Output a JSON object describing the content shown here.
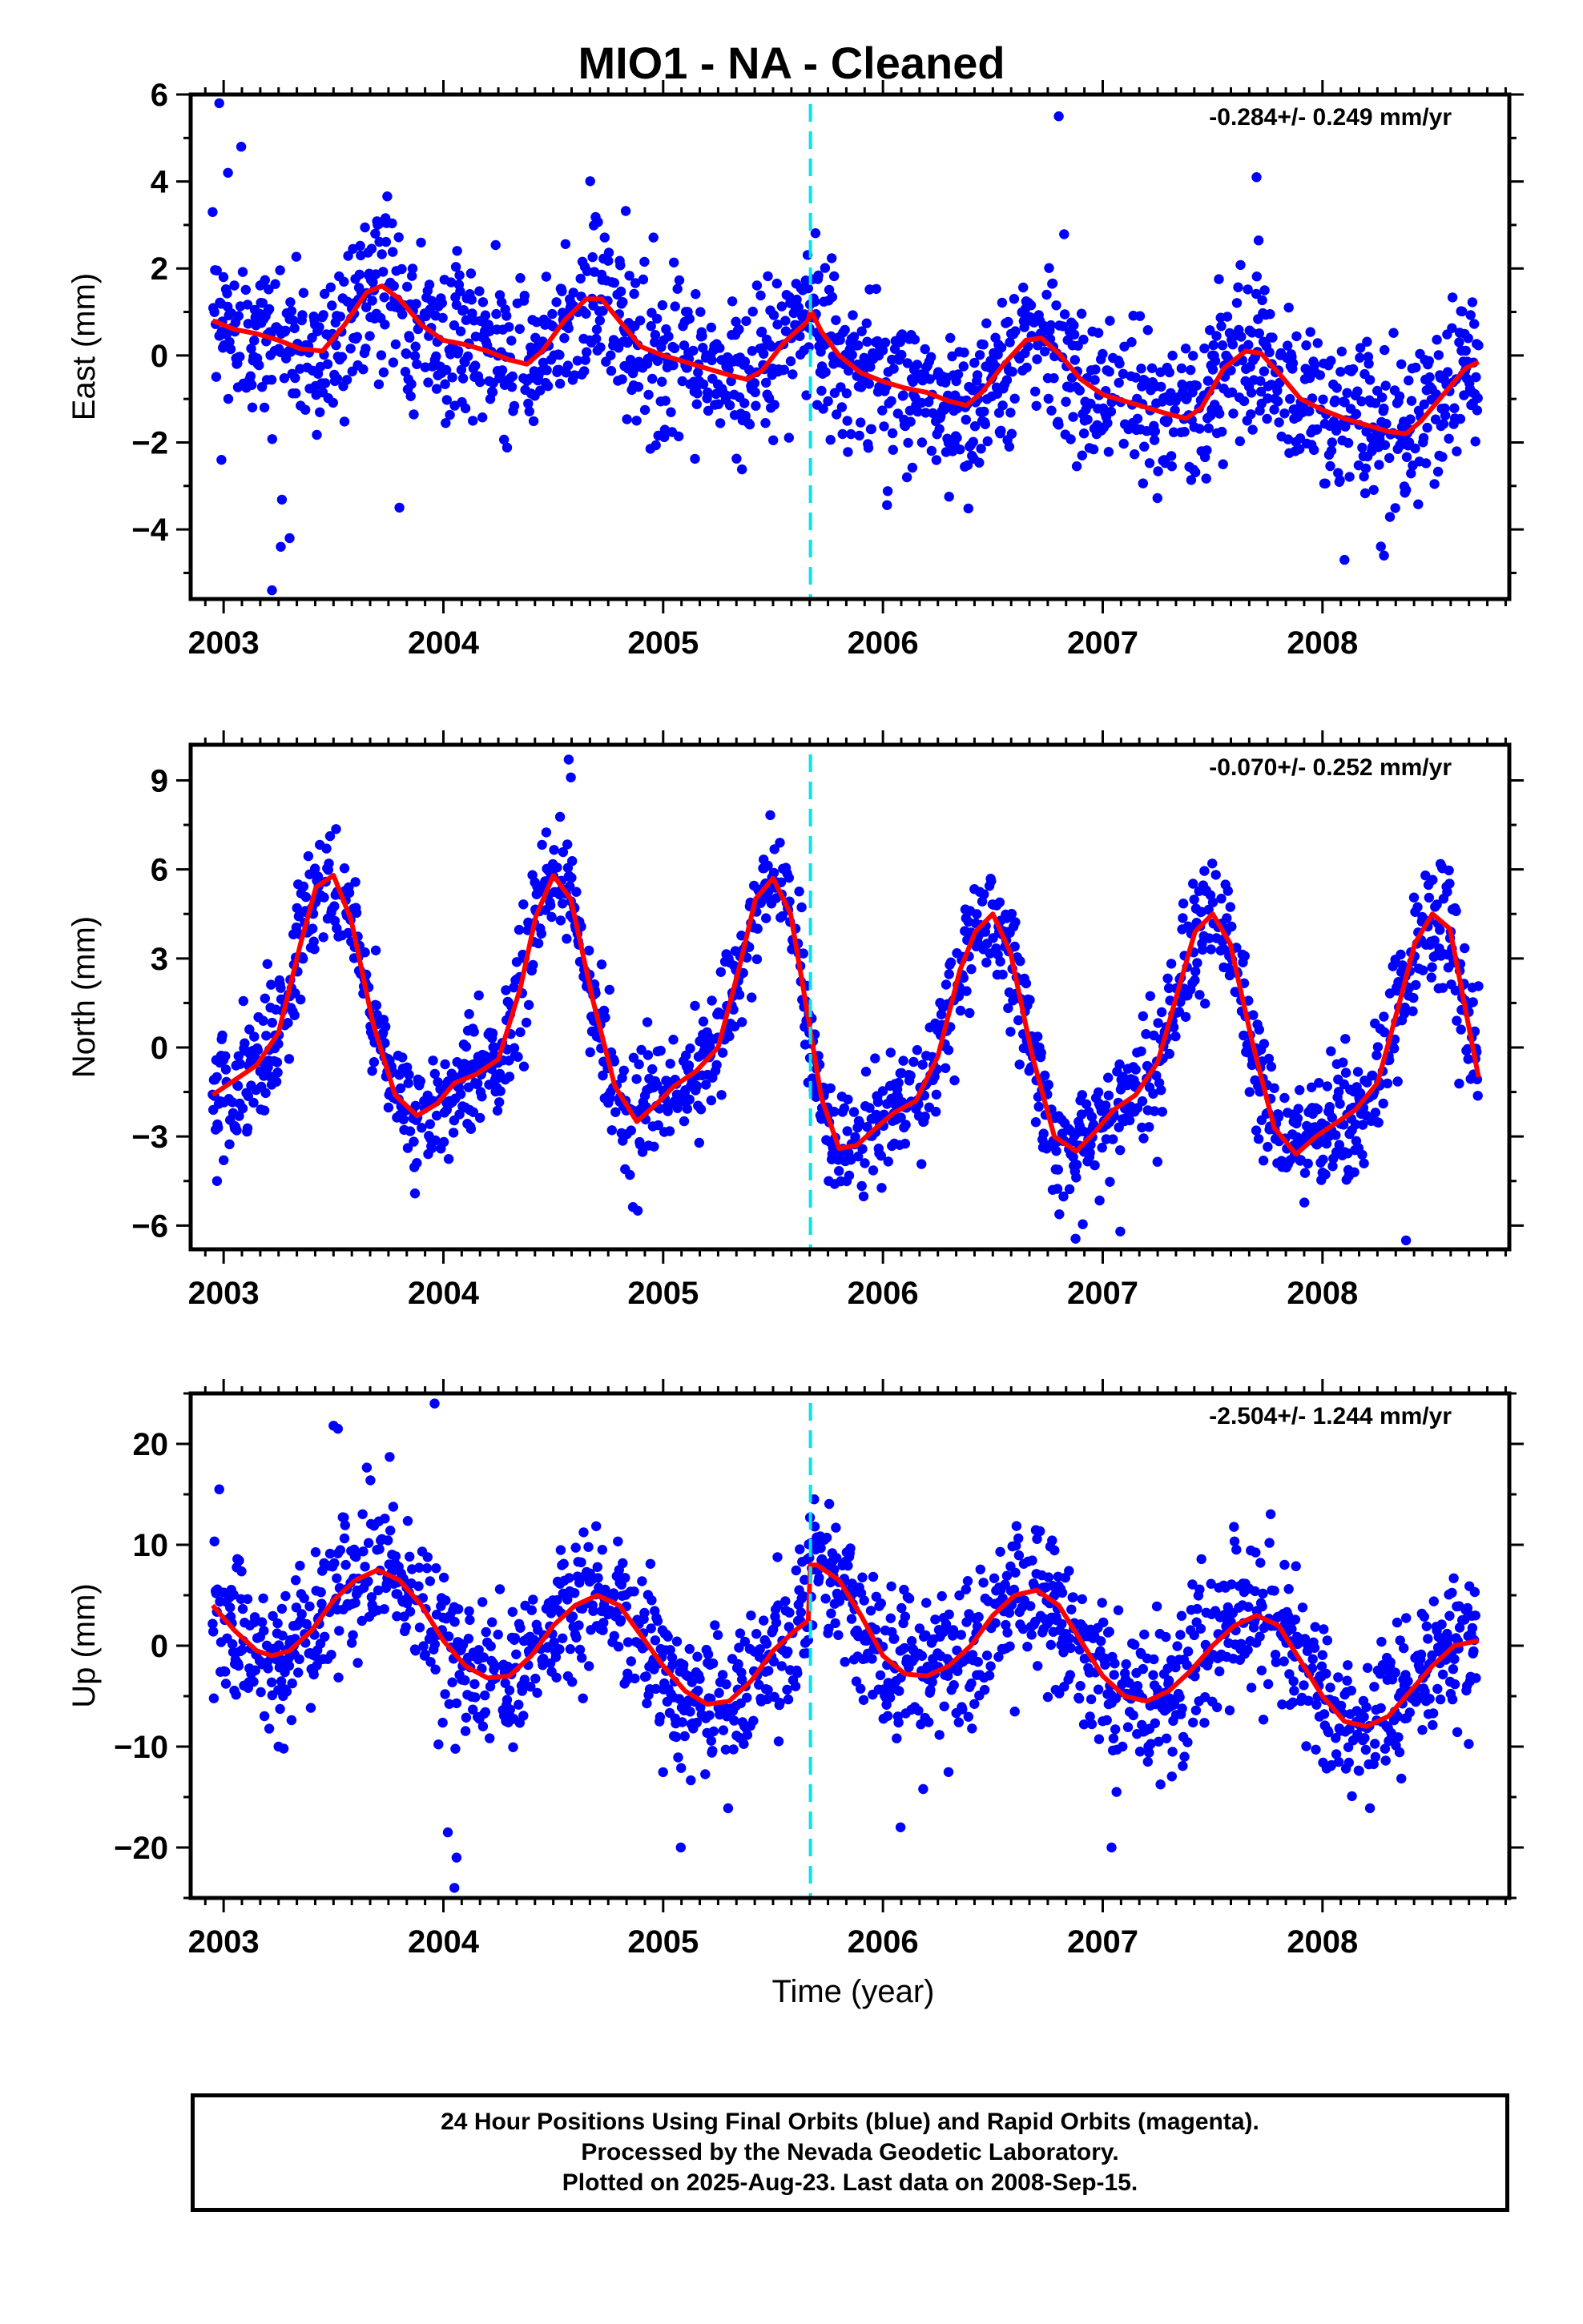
{
  "title": "MIO1  - NA - Cleaned",
  "xlabel": "Time (year)",
  "colors": {
    "final_orbits": "#0000ff",
    "model_fit": "#ff0000",
    "offset_marker": "#00e5ee"
  },
  "footer": {
    "line1": "24 Hour Positions Using Final Orbits (blue) and Rapid Orbits (magenta).",
    "line2": "Processed by the Nevada Geodetic Laboratory.",
    "line3": "Plotted on 2025-Aug-23. Last data on 2008-Sep-15."
  },
  "chart_data": [
    {
      "type": "scatter",
      "ylabel": "East (mm)",
      "rate": "-0.284+/- 0.249 mm/yr",
      "xlim": [
        2002.85,
        2008.85
      ],
      "ylim": [
        -5.6,
        6.0
      ],
      "xticks": [
        2003,
        2004,
        2005,
        2006,
        2007,
        2008
      ],
      "yticks": [
        -4,
        -2,
        0,
        2,
        4,
        6
      ],
      "offset_epoch": 2005.67,
      "data_start": 2002.95,
      "data_end": 2008.71,
      "model_fit": {
        "x": [
          2002.95,
          2003.05,
          2003.15,
          2003.25,
          2003.35,
          2003.45,
          2003.55,
          2003.65,
          2003.72,
          2003.8,
          2003.9,
          2004.0,
          2004.1,
          2004.2,
          2004.3,
          2004.38,
          2004.45,
          2004.55,
          2004.65,
          2004.72,
          2004.8,
          2004.9,
          2005.0,
          2005.1,
          2005.2,
          2005.3,
          2005.38,
          2005.45,
          2005.55,
          2005.66,
          2005.67,
          2005.72,
          2005.8,
          2005.9,
          2006.0,
          2006.1,
          2006.2,
          2006.3,
          2006.38,
          2006.45,
          2006.55,
          2006.65,
          2006.72,
          2006.8,
          2006.9,
          2007.0,
          2007.1,
          2007.2,
          2007.3,
          2007.38,
          2007.45,
          2007.55,
          2007.65,
          2007.72,
          2007.8,
          2007.9,
          2008.0,
          2008.1,
          2008.2,
          2008.3,
          2008.38,
          2008.45,
          2008.55,
          2008.65,
          2008.71
        ],
        "y": [
          0.8,
          0.6,
          0.5,
          0.35,
          0.15,
          0.1,
          0.7,
          1.45,
          1.6,
          1.3,
          0.7,
          0.35,
          0.25,
          0.1,
          -0.1,
          -0.2,
          0.1,
          0.8,
          1.3,
          1.3,
          0.8,
          0.2,
          0.0,
          -0.15,
          -0.3,
          -0.45,
          -0.55,
          -0.35,
          0.3,
          0.8,
          1.05,
          0.55,
          0.0,
          -0.4,
          -0.6,
          -0.75,
          -0.85,
          -1.05,
          -1.15,
          -0.85,
          -0.2,
          0.35,
          0.4,
          0.05,
          -0.55,
          -0.9,
          -1.05,
          -1.2,
          -1.35,
          -1.45,
          -1.2,
          -0.3,
          0.1,
          0.05,
          -0.4,
          -1.0,
          -1.25,
          -1.45,
          -1.6,
          -1.75,
          -1.8,
          -1.5,
          -0.9,
          -0.3,
          -0.15
        ]
      },
      "scatter_sd": 0.9,
      "outliers": {
        "x": [
          2002.98,
          2003.02,
          2003.08,
          2003.22,
          2003.26,
          2003.3,
          2003.8,
          2002.99,
          2006.8,
          2007.7,
          2008.1,
          2008.28
        ],
        "y": [
          5.8,
          4.2,
          4.8,
          -5.4,
          -4.4,
          -4.2,
          -3.5,
          -2.4,
          5.5,
          4.1,
          -4.7,
          -4.6
        ]
      }
    },
    {
      "type": "scatter",
      "ylabel": "North (mm)",
      "rate": "-0.070+/- 0.252 mm/yr",
      "xlim": [
        2002.85,
        2008.85
      ],
      "ylim": [
        -6.8,
        10.2
      ],
      "xticks": [
        2003,
        2004,
        2005,
        2006,
        2007,
        2008
      ],
      "yticks": [
        -6,
        -3,
        0,
        3,
        6,
        9
      ],
      "offset_epoch": 2005.67,
      "data_start": 2002.95,
      "data_end": 2008.71,
      "model_fit": {
        "x": [
          2002.95,
          2003.05,
          2003.15,
          2003.25,
          2003.35,
          2003.42,
          2003.5,
          2003.58,
          2003.68,
          2003.78,
          2003.88,
          2003.97,
          2004.05,
          2004.15,
          2004.25,
          2004.35,
          2004.42,
          2004.5,
          2004.58,
          2004.68,
          2004.78,
          2004.88,
          2004.97,
          2005.05,
          2005.15,
          2005.25,
          2005.35,
          2005.42,
          2005.5,
          2005.58,
          2005.66,
          2005.72,
          2005.8,
          2005.88,
          2005.97,
          2006.05,
          2006.15,
          2006.25,
          2006.35,
          2006.42,
          2006.5,
          2006.58,
          2006.68,
          2006.78,
          2006.88,
          2006.97,
          2007.05,
          2007.15,
          2007.25,
          2007.35,
          2007.42,
          2007.5,
          2007.58,
          2007.68,
          2007.78,
          2007.88,
          2007.97,
          2008.05,
          2008.15,
          2008.25,
          2008.35,
          2008.42,
          2008.5,
          2008.58,
          2008.71
        ],
        "y": [
          -1.6,
          -1.1,
          -0.6,
          0.5,
          3.5,
          5.4,
          5.8,
          4.3,
          0.8,
          -1.6,
          -2.3,
          -1.9,
          -1.2,
          -0.9,
          -0.4,
          2.0,
          4.4,
          5.8,
          5.0,
          1.6,
          -1.3,
          -2.5,
          -1.9,
          -1.3,
          -0.8,
          0.0,
          2.8,
          5.0,
          5.7,
          4.5,
          1.0,
          -1.7,
          -3.4,
          -3.3,
          -2.7,
          -2.2,
          -1.8,
          -0.3,
          2.6,
          3.9,
          4.5,
          3.2,
          -0.3,
          -3.0,
          -3.5,
          -2.8,
          -2.1,
          -1.6,
          -0.5,
          2.1,
          3.9,
          4.5,
          3.5,
          0.2,
          -2.7,
          -3.6,
          -3.0,
          -2.6,
          -2.1,
          -1.2,
          1.5,
          3.5,
          4.5,
          4.0,
          -1.0
        ]
      },
      "scatter_sd": 1.0,
      "outliers": {
        "x": [
          2004.57,
          2004.58,
          2002.97,
          2003.0,
          2007.08,
          2008.38
        ],
        "y": [
          9.7,
          9.1,
          -4.5,
          -3.8,
          -6.2,
          -6.5
        ]
      }
    },
    {
      "type": "scatter",
      "ylabel": "Up (mm)",
      "rate": "-2.504+/- 1.244 mm/yr",
      "xlim": [
        2002.85,
        2008.85
      ],
      "ylim": [
        -25.0,
        25.0
      ],
      "xticks": [
        2003,
        2004,
        2005,
        2006,
        2007,
        2008
      ],
      "yticks": [
        -20,
        -10,
        0,
        10,
        20
      ],
      "offset_epoch": 2005.67,
      "data_start": 2002.95,
      "data_end": 2008.71,
      "model_fit": {
        "x": [
          2002.95,
          2003.05,
          2003.15,
          2003.22,
          2003.3,
          2003.4,
          2003.5,
          2003.6,
          2003.7,
          2003.8,
          2003.9,
          2004.0,
          2004.1,
          2004.2,
          2004.3,
          2004.4,
          2004.5,
          2004.6,
          2004.7,
          2004.8,
          2004.9,
          2005.0,
          2005.1,
          2005.2,
          2005.3,
          2005.4,
          2005.5,
          2005.6,
          2005.66,
          2005.67,
          2005.7,
          2005.8,
          2005.9,
          2006.0,
          2006.1,
          2006.2,
          2006.3,
          2006.4,
          2006.5,
          2006.6,
          2006.7,
          2006.8,
          2006.9,
          2007.0,
          2007.1,
          2007.2,
          2007.3,
          2007.4,
          2007.5,
          2007.6,
          2007.7,
          2007.8,
          2007.9,
          2008.0,
          2008.1,
          2008.2,
          2008.3,
          2008.4,
          2008.5,
          2008.6,
          2008.71
        ],
        "y": [
          4.0,
          1.5,
          -0.5,
          -1.0,
          -0.5,
          1.5,
          4.5,
          6.5,
          7.5,
          6.5,
          4.0,
          0.5,
          -2.0,
          -3.2,
          -3.0,
          -1.0,
          2.0,
          4.0,
          5.0,
          4.0,
          1.0,
          -2.0,
          -4.5,
          -5.8,
          -5.5,
          -3.5,
          -0.5,
          1.5,
          2.5,
          8.0,
          8.0,
          6.5,
          3.0,
          -1.0,
          -2.8,
          -3.0,
          -2.0,
          0.0,
          3.0,
          5.0,
          5.5,
          4.0,
          0.5,
          -3.0,
          -5.0,
          -5.5,
          -4.5,
          -2.5,
          0.0,
          2.0,
          3.0,
          2.0,
          -1.5,
          -5.0,
          -7.5,
          -8.0,
          -7.0,
          -4.5,
          -2.0,
          0.0,
          0.5
        ]
      },
      "scatter_sd": 3.6,
      "outliers": {
        "x": [
          2003.5,
          2003.52,
          2003.96,
          2004.05,
          2004.06,
          2004.02,
          2005.08,
          2006.08,
          2007.04,
          2003.25,
          2002.98
        ],
        "y": [
          21.8,
          21.5,
          24.0,
          -24.0,
          -21.0,
          -18.5,
          -20.0,
          -18.0,
          -20.0,
          -10.0,
          15.5
        ]
      }
    }
  ]
}
